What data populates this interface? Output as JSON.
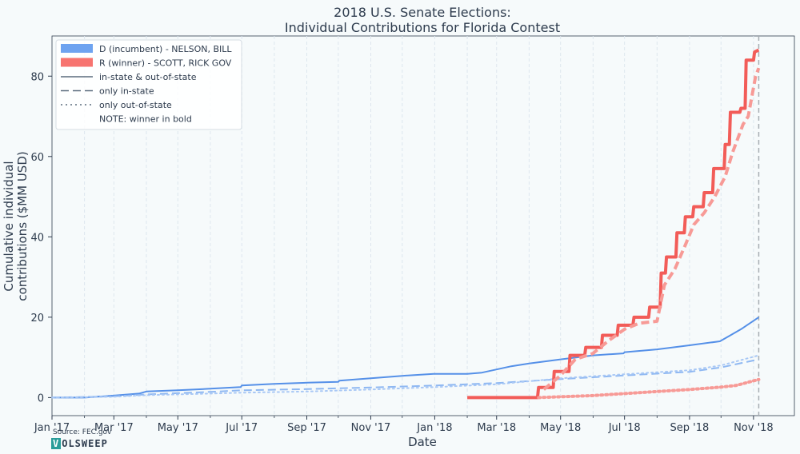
{
  "chart_data": {
    "type": "line",
    "title": [
      "2018 U.S. Senate Elections:",
      "Individual Contributions for Florida Contest"
    ],
    "xlabel": "Date",
    "ylabel": [
      "Cumulative individual",
      "contributions ($MM USD)"
    ],
    "x_ticks": [
      "Jan '17",
      "Mar '17",
      "May '17",
      "Jul '17",
      "Sep '17",
      "Nov '17",
      "Jan '18",
      "Mar '18",
      "May '18",
      "Jul '18",
      "Sep '18",
      "Nov '18"
    ],
    "y_ticks": [
      0,
      20,
      40,
      60,
      80
    ],
    "xlim": [
      "2017-01-01",
      "2018-12-10"
    ],
    "ylim": [
      -4.5,
      90
    ],
    "election_day": "2018-11-06",
    "grid": "vertical dashed",
    "legend_position": "top-left",
    "legend": [
      {
        "kind": "patch",
        "color": "#6ea3f0",
        "label": "D (incumbent) - NELSON, BILL"
      },
      {
        "kind": "patch",
        "color": "#f77470",
        "label": "R (winner) - SCOTT, RICK GOV"
      },
      {
        "kind": "solid",
        "color": "#5a6b7d",
        "label": "in-state & out-of-state"
      },
      {
        "kind": "dashed",
        "color": "#5a6b7d",
        "label": "only in-state"
      },
      {
        "kind": "dotted",
        "color": "#5a6b7d",
        "label": "only out-of-state"
      },
      {
        "kind": "none",
        "color": "",
        "label": "NOTE: winner in bold"
      }
    ],
    "series": [
      {
        "name": "NELSON, BILL (in-state & out-of-state)",
        "party": "D",
        "style": "solid",
        "color": "#5590e8",
        "x": [
          "2017-01-01",
          "2017-02-01",
          "2017-03-01",
          "2017-03-25",
          "2017-04-01",
          "2017-05-01",
          "2017-06-01",
          "2017-06-30",
          "2017-07-01",
          "2017-08-01",
          "2017-09-01",
          "2017-10-01",
          "2017-10-02",
          "2017-11-01",
          "2017-12-01",
          "2017-12-31",
          "2018-01-01",
          "2018-02-01",
          "2018-02-15",
          "2018-03-01",
          "2018-03-15",
          "2018-04-01",
          "2018-05-01",
          "2018-06-01",
          "2018-06-30",
          "2018-07-01",
          "2018-08-01",
          "2018-09-01",
          "2018-09-30",
          "2018-10-10",
          "2018-10-20",
          "2018-11-06"
        ],
        "y": [
          0,
          0,
          0.5,
          1.0,
          1.5,
          1.8,
          2.2,
          2.6,
          3.0,
          3.4,
          3.7,
          3.9,
          4.2,
          4.8,
          5.4,
          5.9,
          5.9,
          5.9,
          6.2,
          7.0,
          7.8,
          8.5,
          9.5,
          10.5,
          11.0,
          11.3,
          12.0,
          13.0,
          14.0,
          15.5,
          17.0,
          20.0
        ]
      },
      {
        "name": "NELSON, BILL (only in-state)",
        "party": "D",
        "style": "dashed",
        "color": "#8fb8f2",
        "x": [
          "2017-01-01",
          "2017-03-01",
          "2017-04-01",
          "2017-06-01",
          "2017-07-01",
          "2017-09-01",
          "2017-11-01",
          "2018-01-01",
          "2018-03-01",
          "2018-05-01",
          "2018-07-01",
          "2018-09-01",
          "2018-10-01",
          "2018-11-06"
        ],
        "y": [
          0,
          0.3,
          0.8,
          1.4,
          1.8,
          2.1,
          2.5,
          3.0,
          3.6,
          4.6,
          5.5,
          6.4,
          7.5,
          9.5
        ]
      },
      {
        "name": "NELSON, BILL (only out-of-state)",
        "party": "D",
        "style": "dotted",
        "color": "#a9c8f5",
        "x": [
          "2017-01-01",
          "2017-03-01",
          "2017-04-01",
          "2017-06-01",
          "2017-07-01",
          "2017-09-01",
          "2017-11-01",
          "2018-01-01",
          "2018-03-01",
          "2018-05-01",
          "2018-07-01",
          "2018-09-01",
          "2018-10-01",
          "2018-11-06"
        ],
        "y": [
          0,
          0.2,
          0.6,
          1.0,
          1.2,
          1.5,
          2.0,
          2.6,
          3.3,
          4.8,
          5.8,
          6.8,
          8.0,
          10.5
        ]
      },
      {
        "name": "SCOTT, RICK GOV (in-state & out-of-state)",
        "party": "R",
        "style": "solid",
        "color": "#f25c58",
        "bold": true,
        "x": [
          "2018-02-01",
          "2018-04-09",
          "2018-04-10",
          "2018-04-24",
          "2018-04-25",
          "2018-05-09",
          "2018-05-10",
          "2018-05-24",
          "2018-05-25",
          "2018-06-09",
          "2018-06-10",
          "2018-06-24",
          "2018-06-25",
          "2018-07-09",
          "2018-07-10",
          "2018-07-24",
          "2018-07-25",
          "2018-08-04",
          "2018-08-05",
          "2018-08-09",
          "2018-08-10",
          "2018-08-19",
          "2018-08-20",
          "2018-08-27",
          "2018-08-28",
          "2018-09-04",
          "2018-09-05",
          "2018-09-14",
          "2018-09-15",
          "2018-09-23",
          "2018-09-24",
          "2018-10-04",
          "2018-10-05",
          "2018-10-09",
          "2018-10-10",
          "2018-10-19",
          "2018-10-20",
          "2018-10-24",
          "2018-10-25",
          "2018-11-01",
          "2018-11-02",
          "2018-11-06"
        ],
        "y": [
          0,
          0,
          2.5,
          2.5,
          6.5,
          6.5,
          10.5,
          10.5,
          12.5,
          12.5,
          15.5,
          15.5,
          18.0,
          18.0,
          20.0,
          20.0,
          22.5,
          22.5,
          31.0,
          31.0,
          35.0,
          35.0,
          41.0,
          41.0,
          45.0,
          45.0,
          47.5,
          47.5,
          51.0,
          51.0,
          57.0,
          57.0,
          63.0,
          63.0,
          71.0,
          71.0,
          72.0,
          72.0,
          84.0,
          84.0,
          86.0,
          86.5
        ]
      },
      {
        "name": "SCOTT, RICK GOV (only in-state)",
        "party": "R",
        "style": "dashed",
        "color": "#f79a96",
        "bold": true,
        "x": [
          "2018-04-15",
          "2018-05-01",
          "2018-05-15",
          "2018-06-01",
          "2018-06-15",
          "2018-07-01",
          "2018-07-15",
          "2018-08-01",
          "2018-08-08",
          "2018-08-18",
          "2018-08-28",
          "2018-09-05",
          "2018-09-15",
          "2018-09-25",
          "2018-10-05",
          "2018-10-12",
          "2018-10-22",
          "2018-10-27",
          "2018-11-03",
          "2018-11-06"
        ],
        "y": [
          2.0,
          5.5,
          9.5,
          11.0,
          14.0,
          17.0,
          18.5,
          19.0,
          28.0,
          32.0,
          38.0,
          43.0,
          46.0,
          50.0,
          55.0,
          61.0,
          68.0,
          70.0,
          80.0,
          82.0
        ]
      },
      {
        "name": "SCOTT, RICK GOV (only out-of-state)",
        "party": "R",
        "style": "dotted",
        "color": "#f79a96",
        "bold": true,
        "x": [
          "2018-04-10",
          "2018-05-01",
          "2018-06-01",
          "2018-07-01",
          "2018-08-01",
          "2018-09-01",
          "2018-10-01",
          "2018-10-15",
          "2018-11-06"
        ],
        "y": [
          0,
          0.2,
          0.5,
          1.0,
          1.5,
          2.0,
          2.6,
          3.0,
          4.5
        ]
      }
    ]
  },
  "footer": {
    "source": "Source: FEC.gov",
    "logo_initial": "V",
    "logo_rest": "OLSWEEP"
  }
}
